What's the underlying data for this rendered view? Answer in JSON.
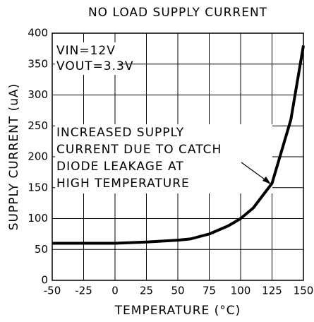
{
  "chart_data": {
    "type": "line",
    "title": "NO LOAD SUPPLY CURRENT",
    "x_label": "TEMPERATURE (°C)",
    "y_label": "SUPPLY CURRENT (uA)",
    "annotations": [
      "VIN=12V",
      "VOUT=3.3V"
    ],
    "callout": [
      "INCREASED SUPPLY",
      "CURRENT DUE TO CATCH",
      "DIODE LEAKAGE AT",
      "HIGH TEMPERATURE"
    ],
    "x": [
      -50,
      0,
      25,
      50,
      60,
      75,
      90,
      100,
      110,
      125,
      140,
      150
    ],
    "series": [
      {
        "name": "Supply current",
        "color": "#000000",
        "values": [
          60,
          60,
          62,
          65,
          67,
          75,
          88,
          100,
          117,
          157,
          260,
          380
        ]
      }
    ],
    "xlim": [
      -50,
      150
    ],
    "xticks": [
      -50,
      -25,
      0,
      25,
      50,
      75,
      100,
      125,
      150
    ],
    "ylim": [
      0,
      400
    ],
    "yticks": [
      0,
      50,
      100,
      150,
      200,
      250,
      300,
      350,
      400
    ],
    "grid": true
  }
}
